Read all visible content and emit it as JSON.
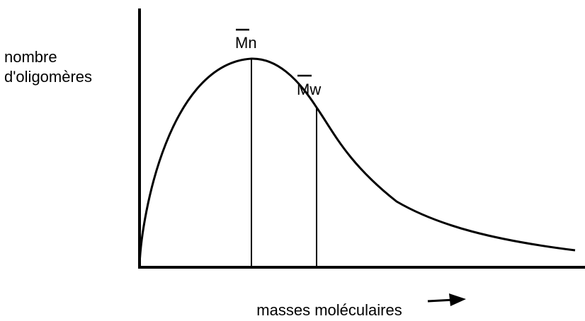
{
  "y_label": [
    "nombre",
    "d'oligomères"
  ],
  "x_label": "masses moléculaires",
  "markers": [
    {
      "label": "Mn"
    },
    {
      "label": "Mw"
    }
  ]
}
